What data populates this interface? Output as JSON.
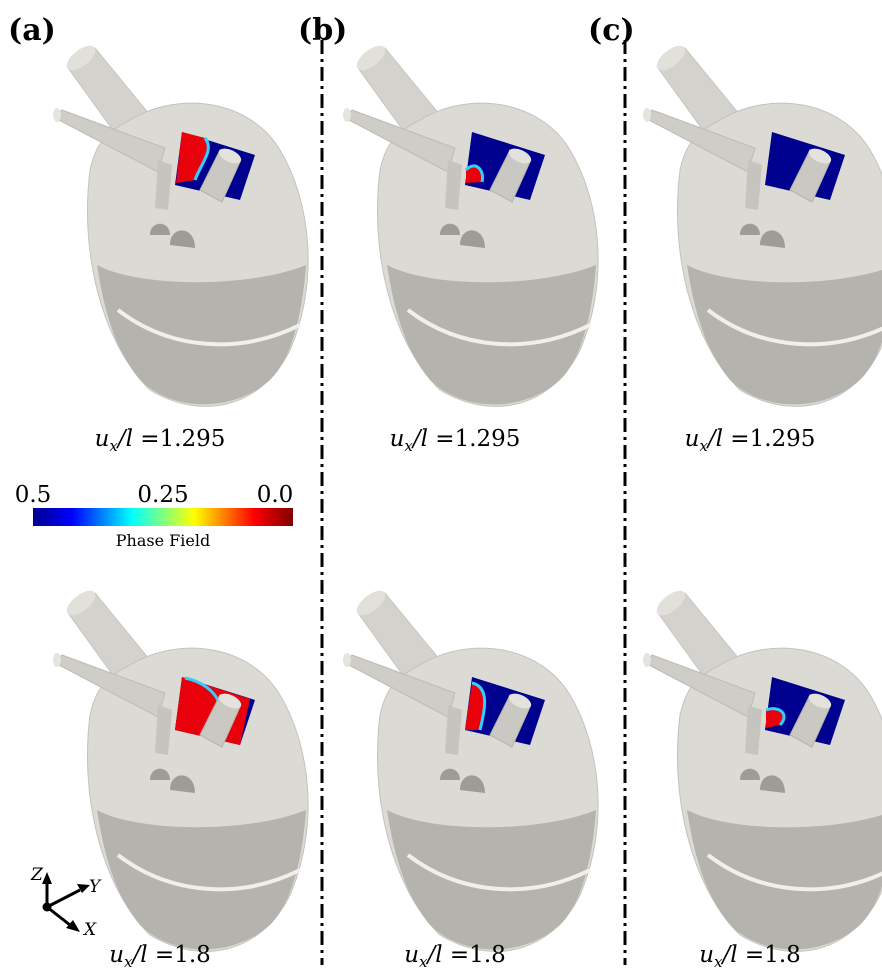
{
  "panels": [
    {
      "label": "(a)"
    },
    {
      "label": "(b)"
    },
    {
      "label": "(c)"
    }
  ],
  "caption": {
    "var": "u",
    "sub": "x",
    "rel": "/l =",
    "rows": [
      {
        "value": "1.295"
      },
      {
        "value": "1.8"
      }
    ]
  },
  "colorbar": {
    "ticks": [
      "0.5",
      "0.25",
      "0.0"
    ],
    "label": "Phase Field"
  },
  "triad": {
    "z": "Z",
    "y": "Y",
    "x": "X"
  }
}
